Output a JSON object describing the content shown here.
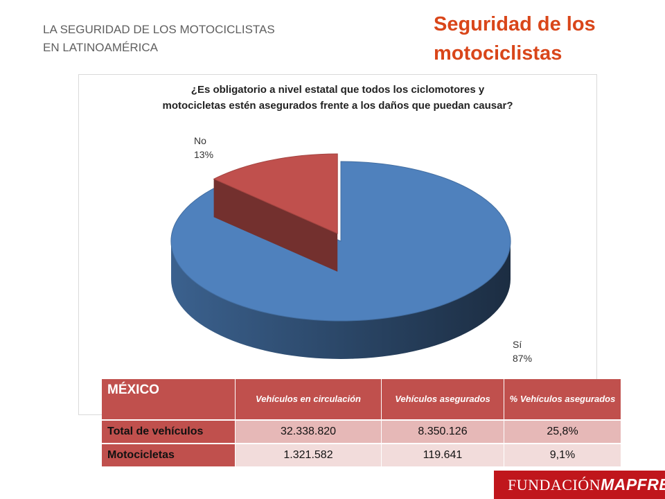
{
  "header": {
    "subtitle_line1": "LA SEGURIDAD DE LOS MOTOCICLISTAS",
    "subtitle_line2": "EN LATINOAMÉRICA",
    "title_line1": "Seguridad de los",
    "title_line2": "motociclistas"
  },
  "chart_data": {
    "type": "pie",
    "title_line1": "¿Es obligatorio a nivel estatal que todos los ciclomotores y",
    "title_line2": "motocicletas estén asegurados frente a los daños que puedan causar?",
    "slices": [
      {
        "label": "Sí",
        "value": 87,
        "display": "87%",
        "color": "#4f81bd"
      },
      {
        "label": "No",
        "value": 13,
        "display": "13%",
        "color": "#c0504d",
        "exploded": true
      }
    ],
    "style": "3d"
  },
  "table": {
    "country": "MÉXICO",
    "headers": [
      "Vehículos en circulación",
      "Vehículos asegurados",
      "% Vehículos asegurados"
    ],
    "rows": [
      {
        "label": "Total de vehículos",
        "values": [
          "32.338.820",
          "8.350.126",
          "25,8%"
        ]
      },
      {
        "label": "Motocicletas",
        "values": [
          "1.321.582",
          "119.641",
          "9,1%"
        ]
      }
    ]
  },
  "logo": {
    "part1": "FUNDACIÓN",
    "part2": "MAPFRE",
    "color": "#c0161c"
  }
}
